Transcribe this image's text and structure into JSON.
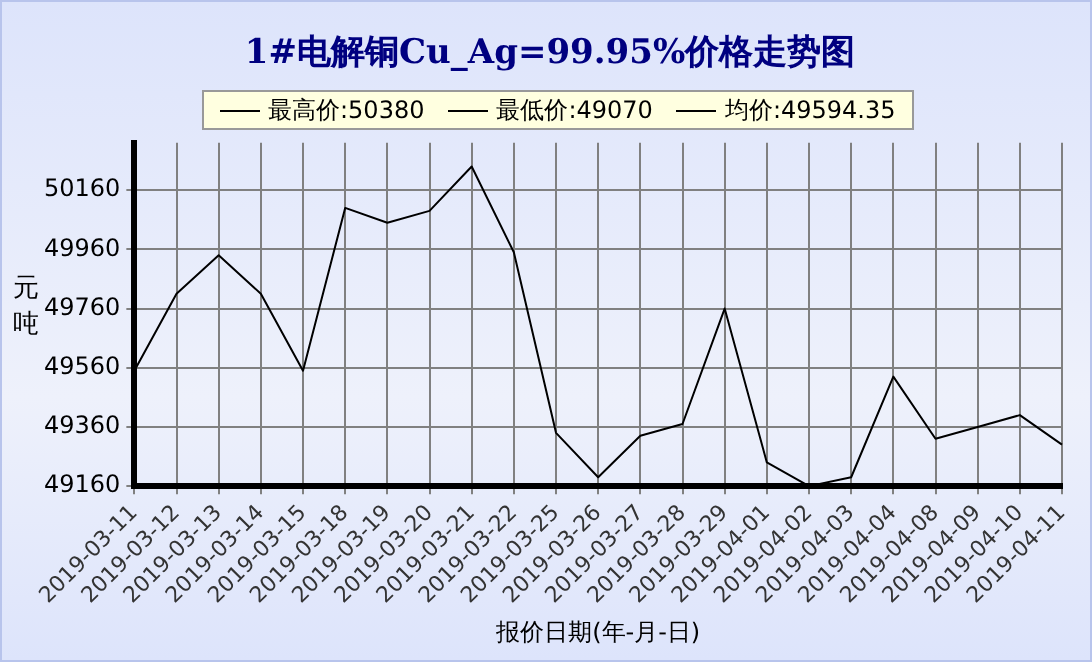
{
  "chart_data": {
    "type": "line",
    "title": "1#电解铜Cu_Ag=99.95%价格走势图",
    "xlabel": "报价日期(年-月-日)",
    "ylabel": "元吨",
    "categories": [
      "2019-03-11",
      "2019-03-12",
      "2019-03-13",
      "2019-03-14",
      "2019-03-15",
      "2019-03-18",
      "2019-03-19",
      "2019-03-20",
      "2019-03-21",
      "2019-03-22",
      "2019-03-25",
      "2019-03-26",
      "2019-03-27",
      "2019-03-28",
      "2019-03-29",
      "2019-04-01",
      "2019-04-02",
      "2019-04-03",
      "2019-04-04",
      "2019-04-08",
      "2019-04-09",
      "2019-04-10",
      "2019-04-11"
    ],
    "series": [
      {
        "color": "#000000",
        "values": [
          49550,
          49810,
          49940,
          49810,
          49550,
          50100,
          50050,
          50090,
          50240,
          49950,
          49340,
          49190,
          49330,
          49370,
          49760,
          49240,
          49160,
          49190,
          49530,
          49320,
          49360,
          49400,
          49300
        ]
      }
    ],
    "annotations": [
      "最高价:50380",
      "最低价:49070",
      "均价:49594.35"
    ],
    "ylim": [
      49160,
      50320
    ],
    "yticks": [
      49160,
      49360,
      49560,
      49760,
      49960,
      50160
    ],
    "grid": true,
    "marker": "none",
    "line_style": "solid"
  }
}
